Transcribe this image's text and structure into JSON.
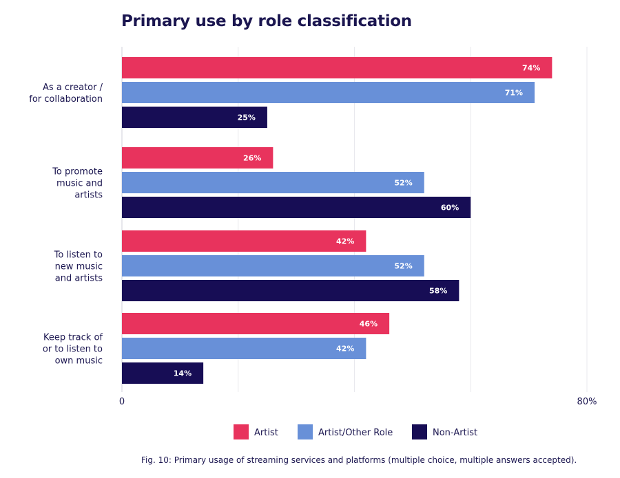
{
  "title": "Primary use by role classification",
  "caption": "Fig. 10: Primary usage of streaming services and platforms (multiple choice, multiple answers accepted).",
  "colors": {
    "text": "#1b1650",
    "grid": "#e9e9ee",
    "axis": "#cfcfd8"
  },
  "chart_data": {
    "type": "bar",
    "orientation": "horizontal",
    "title": "Primary use by role classification",
    "categories": [
      [
        "As a creator /",
        "for collaboration"
      ],
      [
        "To promote",
        "music and",
        "artists"
      ],
      [
        "To listen to",
        "new music",
        "and artists"
      ],
      [
        "Keep track of",
        "or to listen to",
        "own music"
      ]
    ],
    "series": [
      {
        "name": "Artist",
        "color": "#e8335d",
        "values": [
          74,
          26,
          42,
          46
        ]
      },
      {
        "name": "Artist/Other Role",
        "color": "#6890d8",
        "values": [
          71,
          52,
          52,
          42
        ]
      },
      {
        "name": "Non-Artist",
        "color": "#170d55",
        "values": [
          25,
          60,
          58,
          14
        ]
      }
    ],
    "value_suffix": "%",
    "xlim": [
      0,
      80
    ],
    "x_tick_labels": [
      "0",
      "80%"
    ],
    "grid": true,
    "legend_position": "bottom"
  }
}
